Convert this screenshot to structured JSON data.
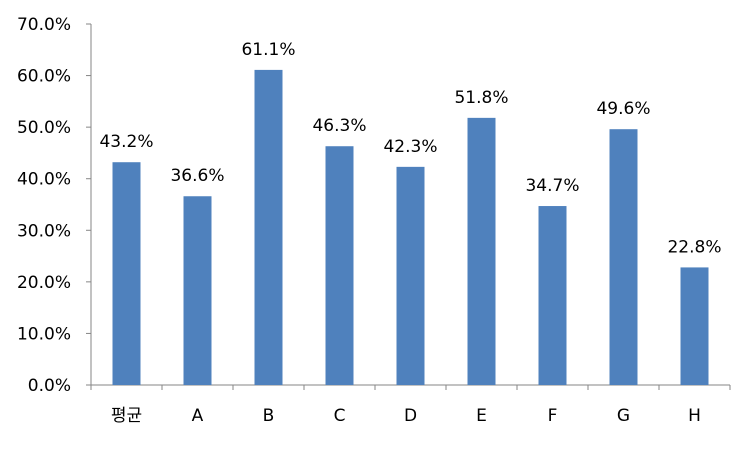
{
  "chart_data": {
    "type": "bar",
    "categories": [
      "평균",
      "A",
      "B",
      "C",
      "D",
      "E",
      "F",
      "G",
      "H"
    ],
    "values": [
      43.2,
      36.6,
      61.1,
      46.3,
      42.3,
      51.8,
      34.7,
      49.6,
      22.8
    ],
    "data_labels": [
      "43.2%",
      "36.6%",
      "61.1%",
      "46.3%",
      "42.3%",
      "51.8%",
      "34.7%",
      "49.6%",
      "22.8%"
    ],
    "ylim": [
      0,
      70
    ],
    "y_ticks": [
      0,
      10,
      20,
      30,
      40,
      50,
      60,
      70
    ],
    "y_tick_labels": [
      "0.0%",
      "10.0%",
      "20.0%",
      "30.0%",
      "40.0%",
      "50.0%",
      "60.0%",
      "70.0%"
    ],
    "bar_color": "#4f81bd",
    "axis_color": "#868686",
    "grid": false,
    "legend": "none",
    "title": "",
    "xlabel": "",
    "ylabel": ""
  }
}
